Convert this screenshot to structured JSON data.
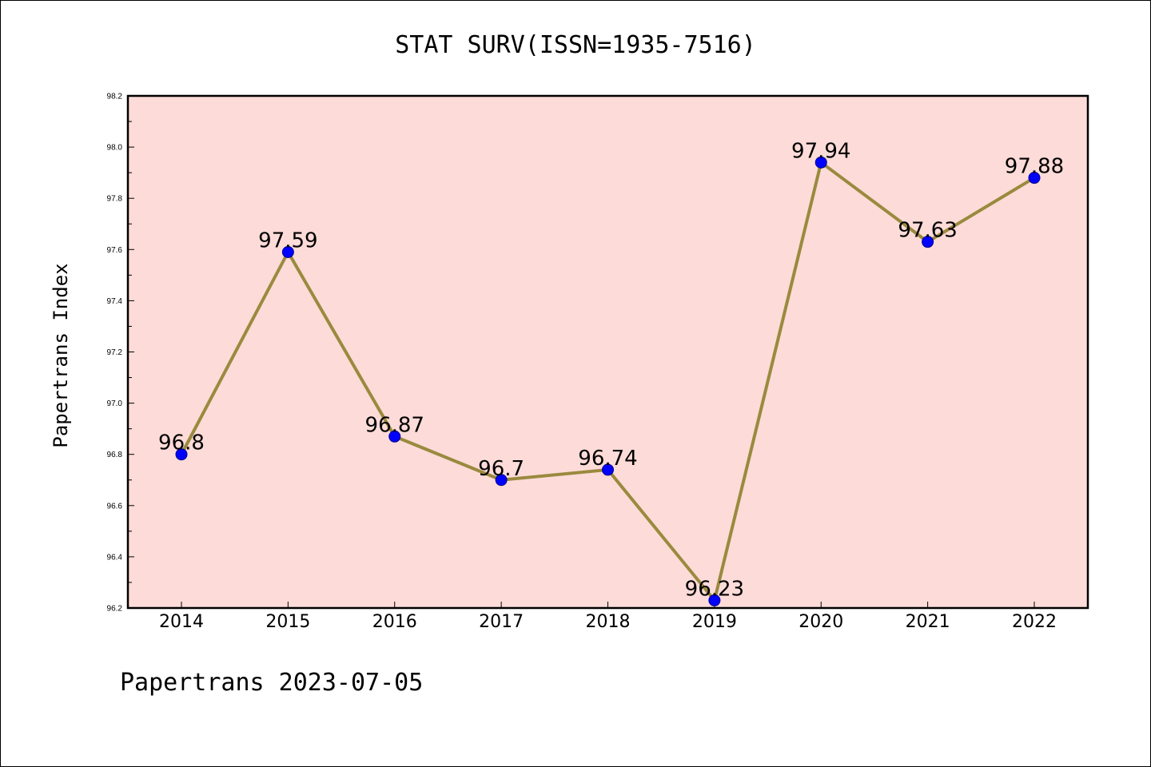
{
  "chart_data": {
    "type": "line",
    "title": "STAT SURV(ISSN=1935-7516)",
    "ylabel": "Papertrans Index",
    "xlabel": "",
    "footer": "Papertrans 2023-07-05",
    "categories": [
      "2014",
      "2015",
      "2016",
      "2017",
      "2018",
      "2019",
      "2020",
      "2021",
      "2022"
    ],
    "values": [
      96.8,
      97.59,
      96.87,
      96.7,
      96.74,
      96.23,
      97.94,
      97.63,
      97.88
    ],
    "data_labels": [
      "96.8",
      "97.59",
      "96.87",
      "96.7",
      "96.74",
      "96.23",
      "97.94",
      "97.63",
      "97.88"
    ],
    "ylim": [
      96.2,
      98.2
    ],
    "yticks": [
      "96.2",
      "96.4",
      "96.6",
      "96.8",
      "97.0",
      "97.2",
      "97.4",
      "97.6",
      "97.8",
      "98.0",
      "98.2"
    ],
    "grid": false,
    "colors": {
      "plot_background": "#fddbd8",
      "line": "#9a8a3e",
      "marker": "#0000ff"
    }
  }
}
